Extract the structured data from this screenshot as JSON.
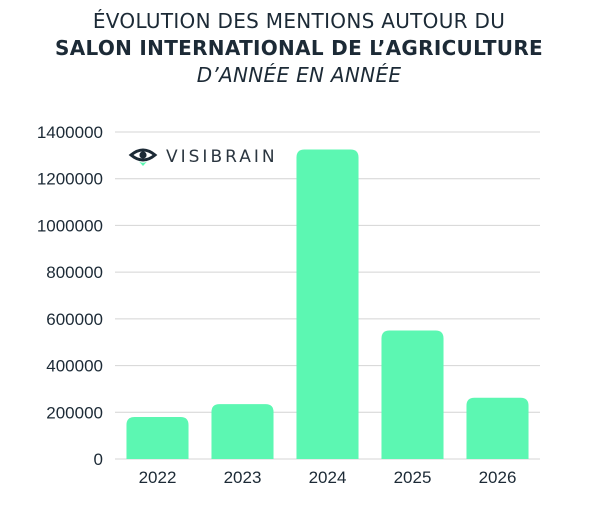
{
  "header": {
    "title_line1": "ÉVOLUTION DES MENTIONS AUTOUR DU",
    "title_line2": "SALON INTERNATIONAL DE L’AGRICULTURE",
    "title_line3": "D’ANNÉE EN ANNÉE"
  },
  "brand": {
    "name": "VISIBRAIN",
    "icon": "eye-icon",
    "icon_color": "#1c2a36",
    "icon_accent": "#5cf7b2"
  },
  "colors": {
    "bar": "#5cf7b2",
    "grid": "#d4d4d4",
    "text": "#1c2a36"
  },
  "chart_data": {
    "type": "bar",
    "categories": [
      "2022",
      "2023",
      "2024",
      "2025",
      "2026"
    ],
    "values": [
      180000,
      235000,
      1325000,
      550000,
      262000
    ],
    "ylim": [
      0,
      1400000
    ],
    "yticks": [
      0,
      200000,
      400000,
      600000,
      800000,
      1000000,
      1200000,
      1400000
    ],
    "ytick_labels": [
      "0",
      "200000",
      "400000",
      "600000",
      "800000",
      "1000000",
      "1200000",
      "1400000"
    ],
    "grid": true,
    "legend": "none"
  }
}
